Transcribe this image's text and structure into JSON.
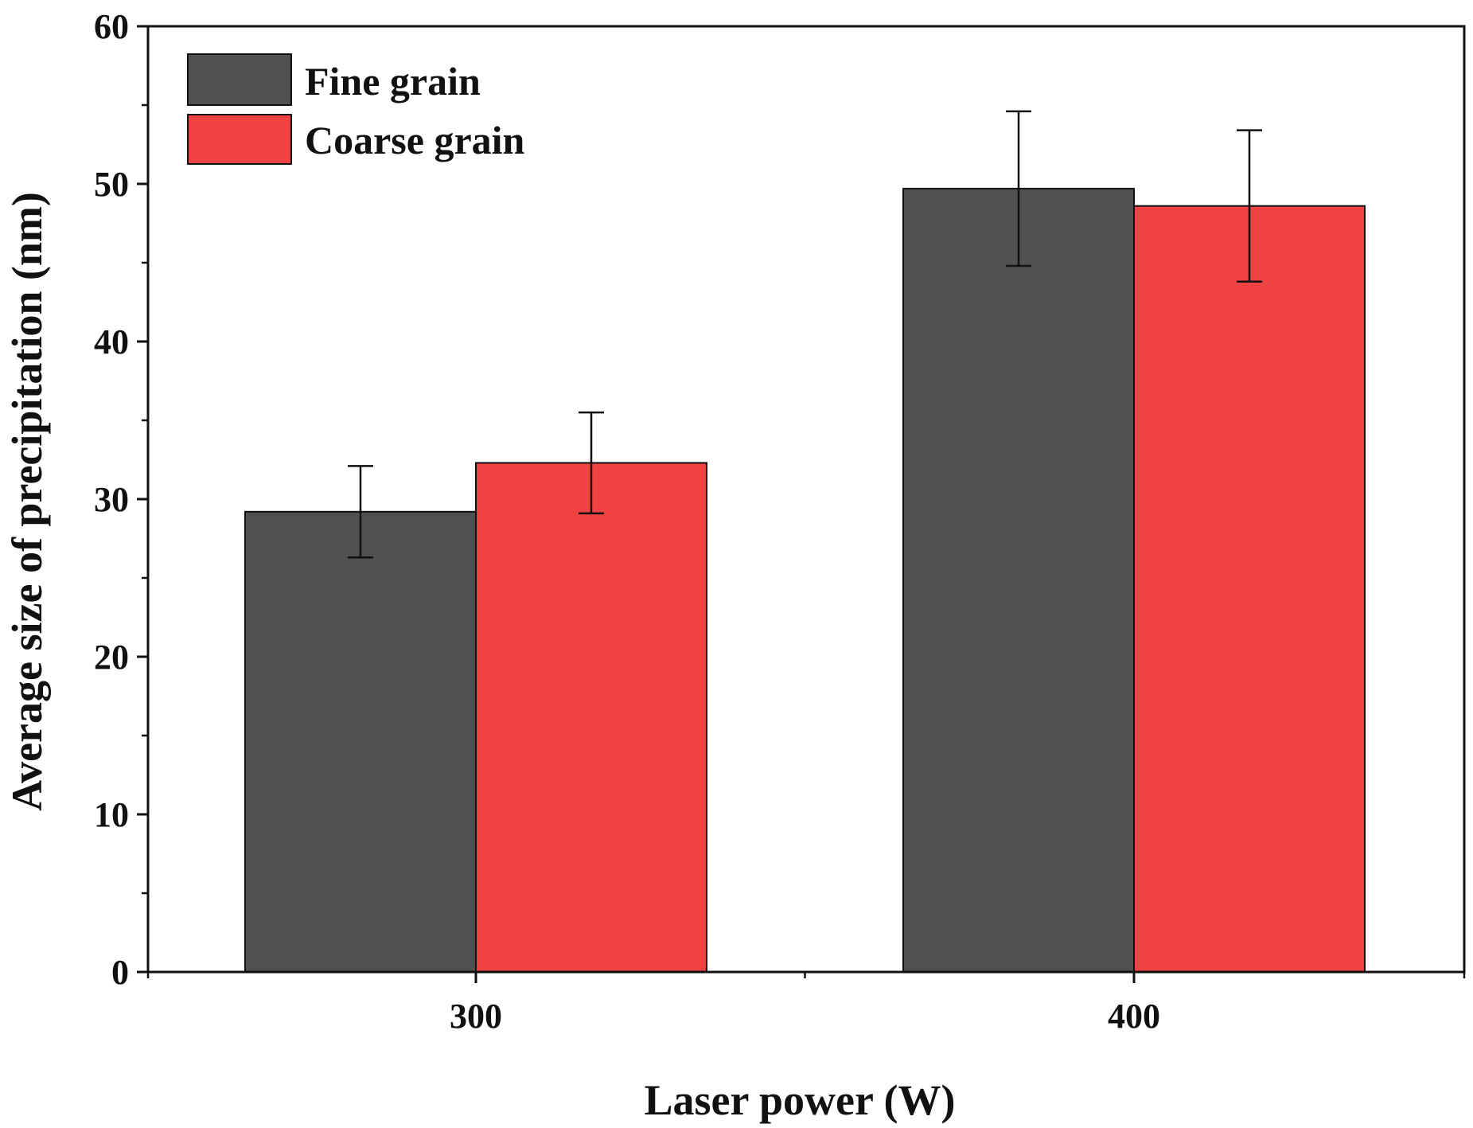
{
  "chart_data": {
    "type": "bar",
    "title": "",
    "xlabel": "Laser power (W)",
    "ylabel": "Average size of precipitation (nm)",
    "categories": [
      "300",
      "400"
    ],
    "ylim": [
      0,
      60
    ],
    "yticks": [
      "0",
      "10",
      "20",
      "30",
      "40",
      "50",
      "60"
    ],
    "grid": false,
    "legend_position": "top-left",
    "series": [
      {
        "name": "Fine grain",
        "color": "#505050",
        "values": [
          29.2,
          49.7
        ],
        "errors": [
          2.9,
          4.9
        ]
      },
      {
        "name": "Coarse grain",
        "color": "#ef4242",
        "values": [
          32.3,
          48.6
        ],
        "errors": [
          3.2,
          4.8
        ]
      }
    ]
  }
}
